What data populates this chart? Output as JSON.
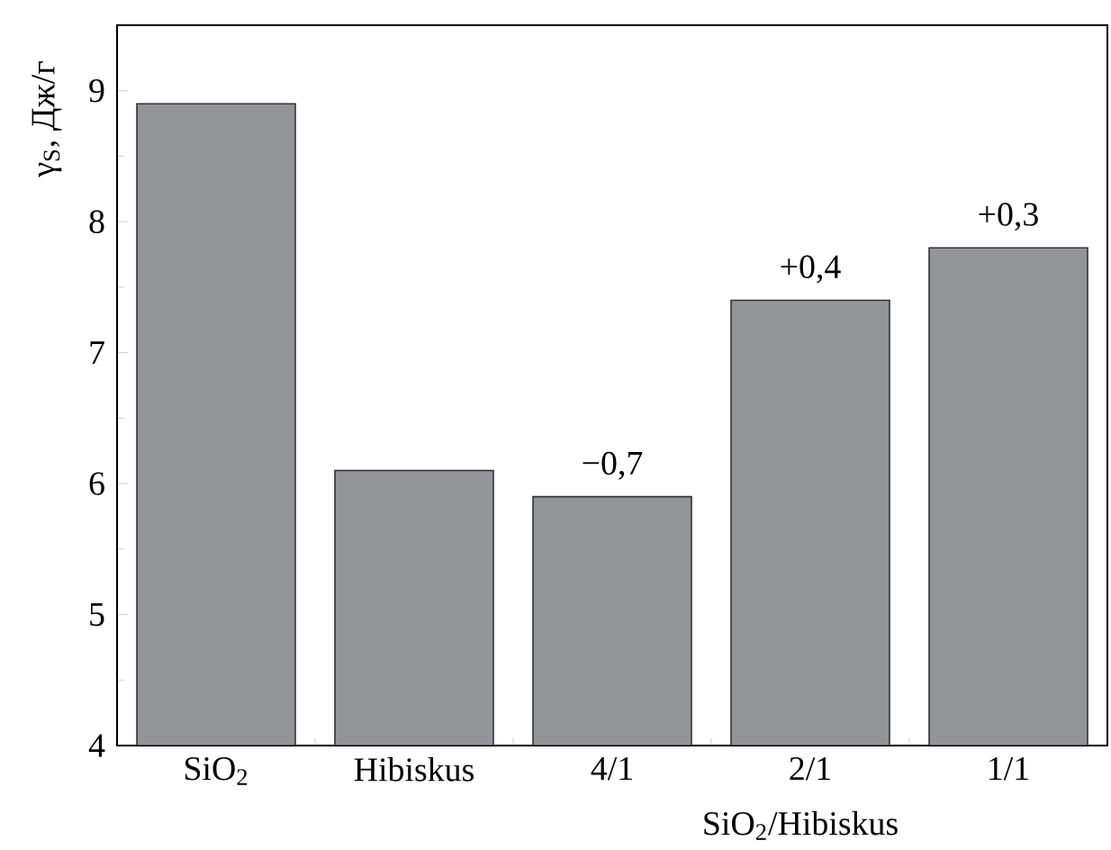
{
  "chart_data": {
    "type": "bar",
    "categories": [
      "SiO$_{2}$",
      "Hibiskus",
      "4/1",
      "2/1",
      "1/1"
    ],
    "values": [
      8.9,
      6.1,
      5.9,
      7.4,
      7.8
    ],
    "annotations": [
      {
        "text": "−0,7",
        "x": "4/1",
        "y": 5.9
      },
      {
        "text": "+0,4",
        "x": "2/1",
        "y": 7.4
      },
      {
        "text": "+0,3",
        "x": "1/1",
        "y": 7.8
      }
    ],
    "color": "#939497",
    "xlabel": "SiO$_{2}$/Hibiskus",
    "ylabel": "γ$_{S}$, Дж/г",
    "ylim": [
      4,
      9.5
    ],
    "yticks": [
      4,
      {
        "value": 4.5,
        "label": null
      },
      5,
      {
        "value": 5.5,
        "label": null
      },
      6,
      {
        "value": 6.5,
        "label": null
      },
      7,
      {
        "value": 7.5,
        "label": null
      },
      8,
      {
        "value": 8.5,
        "label": null
      },
      9
    ]
  }
}
